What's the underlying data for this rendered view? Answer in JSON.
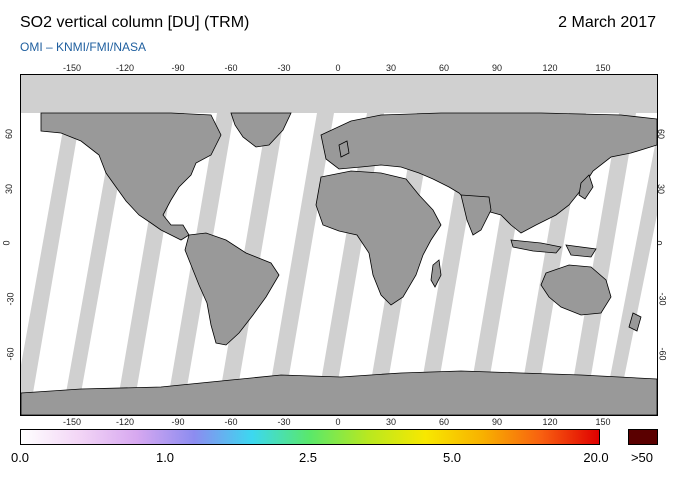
{
  "header": {
    "title": "SO2 vertical column [DU] (TRM)",
    "date": "2 March 2017",
    "credit": "OMI  –  KNMI/FMI/NASA"
  },
  "map": {
    "projection": "equirectangular",
    "lon_ticks": [
      "-150",
      "-120",
      "-90",
      "-60",
      "-30",
      "0",
      "30",
      "60",
      "90",
      "120",
      "150"
    ],
    "lat_ticks": [
      "60",
      "30",
      "0",
      "-30",
      "-60"
    ],
    "colors": {
      "land": "#999999",
      "no_data": "#d0d0d0",
      "background": "#ffffff",
      "coast": "#000000"
    }
  },
  "colorbar": {
    "labels": [
      "0.0",
      "1.0",
      "2.5",
      "5.0",
      "20.0"
    ],
    "over_label": ">50",
    "colors": [
      "#ffffff",
      "#f3d6f6",
      "#d7a8f0",
      "#8c8cf0",
      "#3cd8f0",
      "#5ae86a",
      "#b8e820",
      "#f8e800",
      "#f8b000",
      "#f86010",
      "#e00000"
    ],
    "over_color": "#5a0000"
  }
}
